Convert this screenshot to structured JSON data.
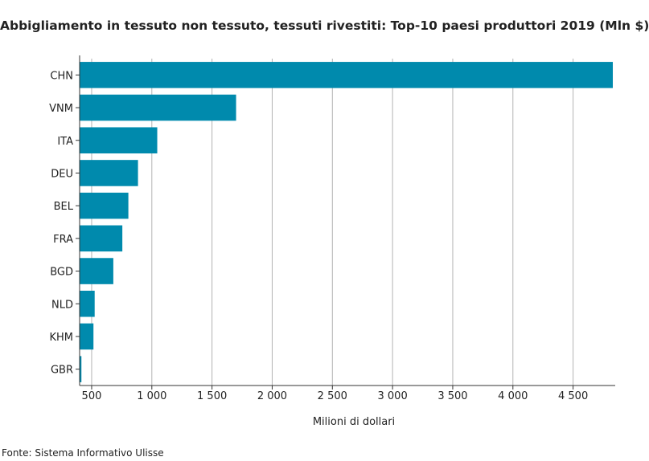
{
  "chart_data": {
    "type": "bar",
    "orientation": "horizontal",
    "title": "Abbigliamento in tessuto non tessuto, tessuti rivestiti: Top-10 paesi produttori 2019 (Mln $)",
    "xlabel": "Milioni di dollari",
    "ylabel": "",
    "categories": [
      "CHN",
      "VNM",
      "ITA",
      "DEU",
      "BEL",
      "FRA",
      "BGD",
      "NLD",
      "KHM",
      "GBR"
    ],
    "values": [
      4830,
      1700,
      1045,
      885,
      805,
      755,
      680,
      525,
      515,
      415
    ],
    "xlim": [
      400,
      4850
    ],
    "xticks": [
      500,
      1000,
      1500,
      2000,
      2500,
      3000,
      3500,
      4000,
      4500
    ],
    "xtick_labels": [
      "500",
      "1 000",
      "1 500",
      "2 000",
      "2 500",
      "3 000",
      "3 500",
      "4 000",
      "4 500"
    ],
    "grid": "vertical",
    "bar_color": "#008aad"
  },
  "source": "Fonte: Sistema Informativo Ulisse"
}
